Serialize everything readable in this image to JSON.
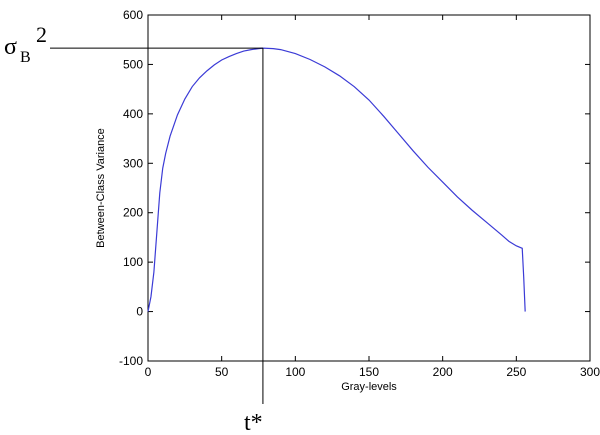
{
  "chart_data": {
    "type": "line",
    "title": "",
    "xlabel": "Gray-levels",
    "ylabel": "Between-Class Variance",
    "xlim": [
      0,
      300
    ],
    "ylim": [
      -100,
      600
    ],
    "grid": false,
    "xticks": [
      "0",
      "50",
      "100",
      "150",
      "200",
      "250",
      "300"
    ],
    "yticks": [
      "-100",
      "0",
      "100",
      "200",
      "300",
      "400",
      "500",
      "600"
    ],
    "series": [
      {
        "color": "#3b3bd6",
        "x": [
          0,
          2,
          4,
          6,
          8,
          10,
          12,
          15,
          20,
          25,
          30,
          35,
          40,
          45,
          50,
          55,
          60,
          65,
          70,
          75,
          78,
          85,
          90,
          100,
          110,
          120,
          130,
          140,
          150,
          160,
          170,
          180,
          190,
          200,
          210,
          220,
          230,
          240,
          245,
          250,
          254,
          255,
          256
        ],
        "y": [
          0,
          30,
          80,
          160,
          240,
          290,
          320,
          355,
          398,
          430,
          455,
          473,
          487,
          499,
          509,
          516,
          522,
          527,
          530,
          532,
          533,
          532,
          530,
          522,
          510,
          495,
          477,
          455,
          428,
          395,
          360,
          325,
          292,
          262,
          232,
          205,
          180,
          155,
          142,
          133,
          128,
          70,
          0
        ]
      }
    ],
    "annotations": {
      "sigma_symbol": "σ",
      "sigma_subscript": "B",
      "sigma_superscript": "2",
      "threshold_label": "t*",
      "threshold_x": 78,
      "peak_y": 533
    }
  }
}
